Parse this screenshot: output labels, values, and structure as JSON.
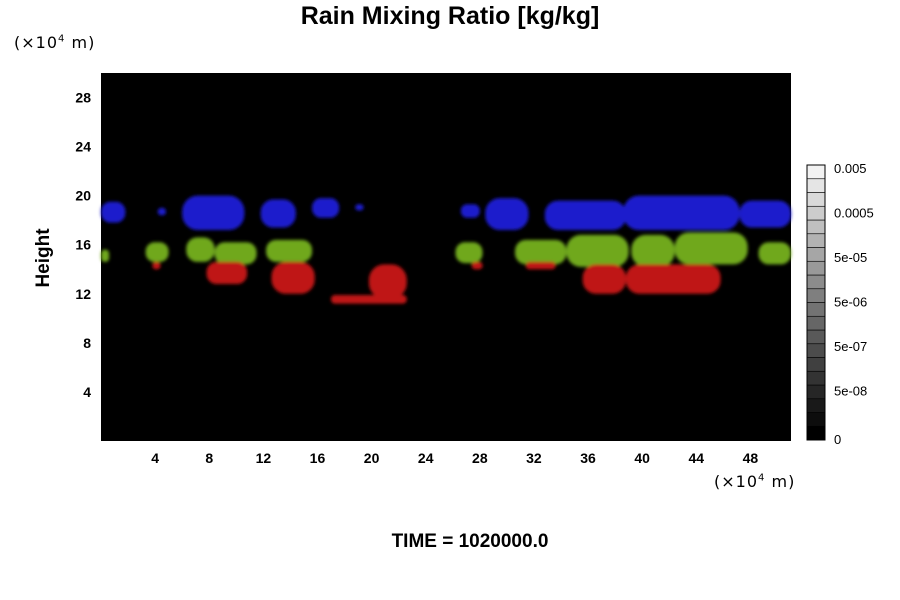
{
  "chart_data": {
    "type": "heatmap",
    "title": "Rain Mixing Ratio [kg/kg]",
    "ylabel": "Height",
    "xlabel": "",
    "x_unit_prefix": "(×10",
    "x_unit_exp": "4",
    "x_unit_suffix": " m)",
    "y_unit_prefix": "(×10",
    "y_unit_exp": "4",
    "y_unit_suffix": " m)",
    "xlim": [
      0,
      51
    ],
    "ylim": [
      0,
      30
    ],
    "x_ticks": [
      4,
      8,
      12,
      16,
      20,
      24,
      28,
      32,
      36,
      40,
      44,
      48
    ],
    "y_ticks": [
      4,
      8,
      12,
      16,
      20,
      24,
      28
    ],
    "background": "#000000",
    "colorbar": {
      "labels": [
        "0",
        "5e-08",
        "5e-07",
        "5e-06",
        "5e-05",
        "0.0005",
        "0.005"
      ],
      "levels": 20,
      "color_min": "#000000",
      "color_max": "#f2f2f2"
    },
    "bands": [
      {
        "name": "upper",
        "color": "#1a1acc",
        "patches": [
          {
            "x0": 0.0,
            "x1": 1.8,
            "ybot": 17.8,
            "ytop": 19.5
          },
          {
            "x0": 4.2,
            "x1": 4.8,
            "ybot": 18.4,
            "ytop": 19.0
          },
          {
            "x0": 6.0,
            "x1": 10.6,
            "ybot": 17.2,
            "ytop": 20.0
          },
          {
            "x0": 11.8,
            "x1": 14.4,
            "ybot": 17.4,
            "ytop": 19.7
          },
          {
            "x0": 15.6,
            "x1": 17.6,
            "ybot": 18.2,
            "ytop": 19.8
          },
          {
            "x0": 18.8,
            "x1": 19.4,
            "ybot": 18.8,
            "ytop": 19.3
          },
          {
            "x0": 26.6,
            "x1": 28.0,
            "ybot": 18.2,
            "ytop": 19.3
          },
          {
            "x0": 28.4,
            "x1": 31.6,
            "ybot": 17.2,
            "ytop": 19.8
          },
          {
            "x0": 32.8,
            "x1": 38.8,
            "ybot": 17.2,
            "ytop": 19.6
          },
          {
            "x0": 38.6,
            "x1": 47.2,
            "ybot": 17.2,
            "ytop": 20.0
          },
          {
            "x0": 47.2,
            "x1": 51.0,
            "ybot": 17.4,
            "ytop": 19.6
          }
        ]
      },
      {
        "name": "middle",
        "color": "#6fa81c",
        "patches": [
          {
            "x0": 0.0,
            "x1": 0.6,
            "ybot": 14.6,
            "ytop": 15.6
          },
          {
            "x0": 3.3,
            "x1": 5.0,
            "ybot": 14.6,
            "ytop": 16.2
          },
          {
            "x0": 6.3,
            "x1": 8.4,
            "ybot": 14.6,
            "ytop": 16.6
          },
          {
            "x0": 8.4,
            "x1": 11.5,
            "ybot": 14.4,
            "ytop": 16.2
          },
          {
            "x0": 12.2,
            "x1": 15.6,
            "ybot": 14.6,
            "ytop": 16.4
          },
          {
            "x0": 26.2,
            "x1": 28.2,
            "ybot": 14.5,
            "ytop": 16.2
          },
          {
            "x0": 30.6,
            "x1": 34.4,
            "ybot": 14.4,
            "ytop": 16.4
          },
          {
            "x0": 34.4,
            "x1": 39.0,
            "ybot": 14.2,
            "ytop": 16.8
          },
          {
            "x0": 39.2,
            "x1": 42.4,
            "ybot": 14.2,
            "ytop": 16.8
          },
          {
            "x0": 42.4,
            "x1": 47.8,
            "ybot": 14.4,
            "ytop": 17.0
          },
          {
            "x0": 48.6,
            "x1": 51.0,
            "ybot": 14.4,
            "ytop": 16.2
          }
        ]
      },
      {
        "name": "lower",
        "color": "#bf1414",
        "patches": [
          {
            "x0": 3.8,
            "x1": 4.4,
            "ybot": 14.0,
            "ytop": 14.6
          },
          {
            "x0": 7.8,
            "x1": 10.8,
            "ybot": 12.8,
            "ytop": 14.6
          },
          {
            "x0": 12.6,
            "x1": 15.8,
            "ybot": 12.0,
            "ytop": 14.6
          },
          {
            "x0": 17.0,
            "x1": 22.6,
            "ybot": 11.2,
            "ytop": 11.9
          },
          {
            "x0": 19.8,
            "x1": 22.6,
            "ybot": 11.6,
            "ytop": 14.4
          },
          {
            "x0": 27.4,
            "x1": 28.2,
            "ybot": 14.0,
            "ytop": 14.6
          },
          {
            "x0": 31.4,
            "x1": 33.6,
            "ybot": 14.0,
            "ytop": 14.6
          },
          {
            "x0": 35.6,
            "x1": 38.8,
            "ybot": 12.0,
            "ytop": 14.4
          },
          {
            "x0": 38.8,
            "x1": 45.8,
            "ybot": 12.0,
            "ytop": 14.4
          }
        ]
      }
    ]
  },
  "time_label": "TIME = 1020000.0"
}
